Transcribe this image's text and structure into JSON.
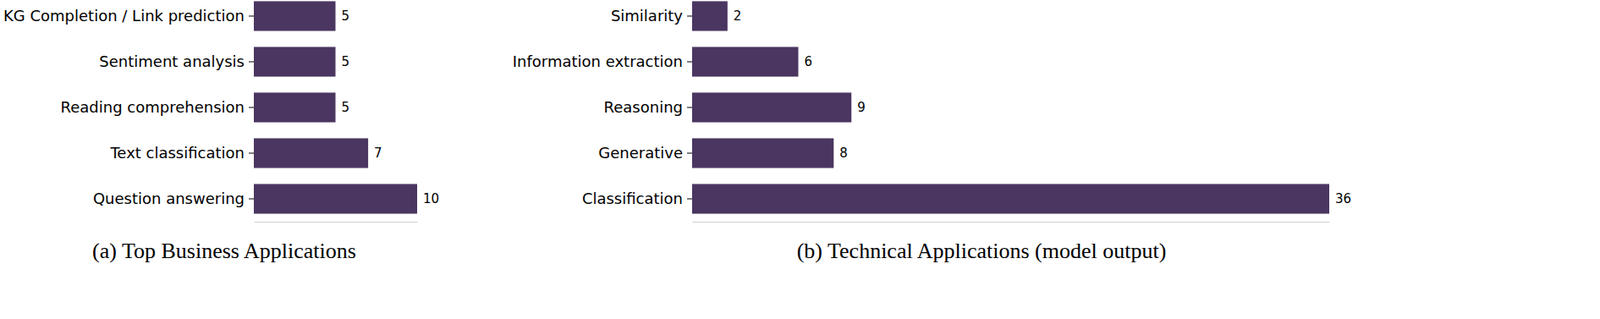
{
  "chart_data": [
    {
      "type": "bar",
      "orientation": "horizontal",
      "title": "(a) Top Business Applications",
      "categories": [
        "KG Completion / Link prediction",
        "Sentiment analysis",
        "Reading comprehension",
        "Text classification",
        "Question answering"
      ],
      "values": [
        5,
        5,
        5,
        7,
        10
      ],
      "color": "#4a3660",
      "xlim": [
        0,
        10
      ],
      "data_labels": true,
      "tick_labels": "y"
    },
    {
      "type": "bar",
      "orientation": "horizontal",
      "title": "(b) Technical Applications (model output)",
      "categories": [
        "Similarity",
        "Information extraction",
        "Reasoning",
        "Generative",
        "Classification"
      ],
      "values": [
        2,
        6,
        9,
        8,
        36
      ],
      "color": "#4a3660",
      "xlim": [
        0,
        36
      ],
      "data_labels": true,
      "tick_labels": "y"
    }
  ]
}
